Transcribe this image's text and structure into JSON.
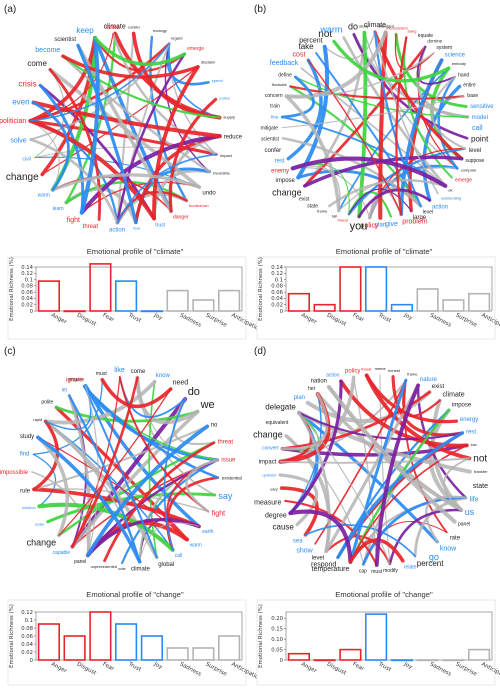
{
  "colors": {
    "red": "#e8242a",
    "blue": "#2a8bf2",
    "gray": "#b4b4b4",
    "purple": "#7b1fa2",
    "green": "#3ed43e",
    "dark": "#222222"
  },
  "panels": [
    {
      "label": "(a)",
      "words": [
        {
          "t": "climate",
          "c": "dark",
          "s": 7
        },
        {
          "t": "conifer",
          "c": "dark",
          "s": 4
        },
        {
          "t": "ecology",
          "c": "dark",
          "s": 4
        },
        {
          "t": "regard",
          "c": "dark",
          "s": 4
        },
        {
          "t": "emerge",
          "c": "red",
          "s": 5
        },
        {
          "t": "disclaim",
          "c": "dark",
          "s": 4
        },
        {
          "t": "spend",
          "c": "blue",
          "s": 4
        },
        {
          "t": "police",
          "c": "blue",
          "s": 4
        },
        {
          "t": "supply",
          "c": "dark",
          "s": 4
        },
        {
          "t": "reduce",
          "c": "dark",
          "s": 6
        },
        {
          "t": "impact",
          "c": "dark",
          "s": 4
        },
        {
          "t": "irreversible",
          "c": "dark",
          "s": 3.5
        },
        {
          "t": "undo",
          "c": "dark",
          "s": 6
        },
        {
          "t": "breakdown",
          "c": "red",
          "s": 4
        },
        {
          "t": "danger",
          "c": "red",
          "s": 5
        },
        {
          "t": "trust",
          "c": "blue",
          "s": 5
        },
        {
          "t": "real",
          "c": "blue",
          "s": 4
        },
        {
          "t": "action",
          "c": "blue",
          "s": 6
        },
        {
          "t": "threat",
          "c": "red",
          "s": 6
        },
        {
          "t": "fight",
          "c": "red",
          "s": 7
        },
        {
          "t": "learn",
          "c": "blue",
          "s": 5
        },
        {
          "t": "warm",
          "c": "blue",
          "s": 5
        },
        {
          "t": "change",
          "c": "dark",
          "s": 10
        },
        {
          "t": "civil",
          "c": "blue",
          "s": 5
        },
        {
          "t": "solve",
          "c": "blue",
          "s": 7
        },
        {
          "t": "politician",
          "c": "red",
          "s": 7
        },
        {
          "t": "even",
          "c": "blue",
          "s": 8
        },
        {
          "t": "crisis",
          "c": "red",
          "s": 8
        },
        {
          "t": "come",
          "c": "dark",
          "s": 8
        },
        {
          "t": "become",
          "c": "blue",
          "s": 7
        },
        {
          "t": "scientist",
          "c": "dark",
          "s": 6
        },
        {
          "t": "keep",
          "c": "blue",
          "s": 8
        },
        {
          "t": "strike",
          "c": "red",
          "s": 6
        }
      ],
      "profile": {
        "title": "Emotional profile of \"climate\"",
        "ylabel": "Emotional Richness (%)",
        "ylim": [
          0,
          0.14
        ],
        "yticks": [
          "0",
          "0.02",
          "0.04",
          "0.06",
          "0.08",
          "0.1",
          "0.12",
          "0.14"
        ],
        "categories": [
          "Anger",
          "Disgust",
          "Fear",
          "Trust",
          "Joy",
          "Sadness",
          "Surprise",
          "Anticipation"
        ],
        "values": [
          0.095,
          0,
          0.15,
          0.095,
          0,
          0.065,
          0.035,
          0.065
        ],
        "bar_colors": [
          "red",
          "red",
          "red",
          "blue",
          "blue",
          "gray",
          "gray",
          "gray"
        ]
      }
    },
    {
      "label": "(b)",
      "words": [
        {
          "t": "climate",
          "c": "dark",
          "s": 7
        },
        {
          "t": "standard",
          "c": "dark",
          "s": 4
        },
        {
          "t": "inconsistent",
          "c": "red",
          "s": 4
        },
        {
          "t": "bang",
          "c": "red",
          "s": 4
        },
        {
          "t": "equate",
          "c": "dark",
          "s": 5
        },
        {
          "t": "domine",
          "c": "dark",
          "s": 4.5
        },
        {
          "t": "system",
          "c": "dark",
          "s": 5
        },
        {
          "t": "science",
          "c": "blue",
          "s": 6
        },
        {
          "t": "embody",
          "c": "dark",
          "s": 4
        },
        {
          "t": "hand",
          "c": "dark",
          "s": 5
        },
        {
          "t": "entire",
          "c": "dark",
          "s": 5
        },
        {
          "t": "base",
          "c": "dark",
          "s": 5
        },
        {
          "t": "sensitive",
          "c": "blue",
          "s": 6
        },
        {
          "t": "model",
          "c": "blue",
          "s": 6
        },
        {
          "t": "call",
          "c": "blue",
          "s": 7
        },
        {
          "t": "point",
          "c": "dark",
          "s": 8
        },
        {
          "t": "level",
          "c": "dark",
          "s": 6
        },
        {
          "t": "suppose",
          "c": "dark",
          "s": 5
        },
        {
          "t": "compare",
          "c": "dark",
          "s": 4
        },
        {
          "t": "emerge",
          "c": "red",
          "s": 5
        },
        {
          "t": "ok",
          "c": "dark",
          "s": 4
        },
        {
          "t": "outstanding",
          "c": "blue",
          "s": 4
        },
        {
          "t": "action",
          "c": "blue",
          "s": 6
        },
        {
          "t": "level",
          "c": "dark",
          "s": 5
        },
        {
          "t": "large",
          "c": "dark",
          "s": 6
        },
        {
          "t": "problem",
          "c": "red",
          "s": 7
        },
        {
          "t": "give",
          "c": "blue",
          "s": 7
        },
        {
          "t": "plan",
          "c": "blue",
          "s": 6
        },
        {
          "t": "policy",
          "c": "red",
          "s": 7
        },
        {
          "t": "you",
          "c": "dark",
          "s": 11
        },
        {
          "t": "threat",
          "c": "red",
          "s": 4
        },
        {
          "t": "tall",
          "c": "dark",
          "s": 4
        },
        {
          "t": "frame",
          "c": "dark",
          "s": 4
        },
        {
          "t": "state",
          "c": "dark",
          "s": 5
        },
        {
          "t": "exist",
          "c": "dark",
          "s": 5
        },
        {
          "t": "change",
          "c": "dark",
          "s": 9
        },
        {
          "t": "impose",
          "c": "dark",
          "s": 6
        },
        {
          "t": "enemy",
          "c": "red",
          "s": 6
        },
        {
          "t": "rest",
          "c": "blue",
          "s": 6
        },
        {
          "t": "confer",
          "c": "dark",
          "s": 6
        },
        {
          "t": "scientist",
          "c": "dark",
          "s": 5
        },
        {
          "t": "mitigate",
          "c": "dark",
          "s": 5
        },
        {
          "t": "fine",
          "c": "blue",
          "s": 4.5
        },
        {
          "t": "train",
          "c": "dark",
          "s": 5
        },
        {
          "t": "concern",
          "c": "dark",
          "s": 5
        },
        {
          "t": "fluctuate",
          "c": "dark",
          "s": 4
        },
        {
          "t": "define",
          "c": "dark",
          "s": 5
        },
        {
          "t": "feedback",
          "c": "blue",
          "s": 7
        },
        {
          "t": "cost",
          "c": "red",
          "s": 7
        },
        {
          "t": "take",
          "c": "dark",
          "s": 8
        },
        {
          "t": "percent",
          "c": "dark",
          "s": 7
        },
        {
          "t": "not",
          "c": "dark",
          "s": 10
        },
        {
          "t": "warm",
          "c": "blue",
          "s": 9
        },
        {
          "t": "do",
          "c": "dark",
          "s": 9
        },
        {
          "t": "study",
          "c": "dark",
          "s": 4
        }
      ],
      "profile": {
        "title": "Emotional profile of \"climate\"",
        "ylabel": "Emotional Richness (%)",
        "ylim": [
          0,
          0.14
        ],
        "yticks": [
          "0",
          "0.02",
          "0.04",
          "0.06",
          "0.08",
          "0.1",
          "0.12",
          "0.14"
        ],
        "categories": [
          "Anger",
          "Disgust",
          "Fear",
          "Trust",
          "Joy",
          "Sadness",
          "Surprise",
          "Anticipation"
        ],
        "values": [
          0.055,
          0.02,
          0.14,
          0.14,
          0.02,
          0.07,
          0.035,
          0.055
        ],
        "bar_colors": [
          "red",
          "red",
          "red",
          "blue",
          "blue",
          "gray",
          "gray",
          "gray"
        ]
      }
    },
    {
      "label": "(c)",
      "words": [
        {
          "t": "require",
          "c": "dark",
          "s": 5
        },
        {
          "t": "must",
          "c": "dark",
          "s": 5
        },
        {
          "t": "like",
          "c": "blue",
          "s": 7
        },
        {
          "t": "come",
          "c": "dark",
          "s": 6
        },
        {
          "t": "know",
          "c": "blue",
          "s": 6
        },
        {
          "t": "need",
          "c": "dark",
          "s": 7
        },
        {
          "t": "do",
          "c": "dark",
          "s": 11
        },
        {
          "t": "we",
          "c": "dark",
          "s": 11
        },
        {
          "t": "no",
          "c": "dark",
          "s": 6
        },
        {
          "t": "threat",
          "c": "red",
          "s": 6
        },
        {
          "t": "issue",
          "c": "red",
          "s": 6
        },
        {
          "t": "existential",
          "c": "dark",
          "s": 4.5
        },
        {
          "t": "say",
          "c": "blue",
          "s": 9
        },
        {
          "t": "fight",
          "c": "red",
          "s": 7
        },
        {
          "t": "earth",
          "c": "blue",
          "s": 5
        },
        {
          "t": "warm",
          "c": "blue",
          "s": 5
        },
        {
          "t": "call",
          "c": "blue",
          "s": 5
        },
        {
          "t": "global",
          "c": "dark",
          "s": 6
        },
        {
          "t": "climate",
          "c": "dark",
          "s": 6
        },
        {
          "t": "vote",
          "c": "dark",
          "s": 4
        },
        {
          "t": "unprecedented",
          "c": "dark",
          "s": 4
        },
        {
          "t": "panel",
          "c": "dark",
          "s": 5
        },
        {
          "t": "capable",
          "c": "blue",
          "s": 5
        },
        {
          "t": "change",
          "c": "dark",
          "s": 9
        },
        {
          "t": "scale",
          "c": "blue",
          "s": 4
        },
        {
          "t": "solution",
          "c": "blue",
          "s": 4
        },
        {
          "t": "rule",
          "c": "dark",
          "s": 6
        },
        {
          "t": "impossible",
          "c": "red",
          "s": 6
        },
        {
          "t": "find",
          "c": "blue",
          "s": 6
        },
        {
          "t": "study",
          "c": "dark",
          "s": 6
        },
        {
          "t": "rapid",
          "c": "dark",
          "s": 4
        },
        {
          "t": "polite",
          "c": "dark",
          "s": 5
        },
        {
          "t": "let",
          "c": "blue",
          "s": 5
        },
        {
          "t": "ignore",
          "c": "red",
          "s": 6
        }
      ],
      "profile": {
        "title": "Emotional profile of \"change\"",
        "ylabel": "Emotional Richness (%)",
        "ylim": [
          0,
          0.12
        ],
        "yticks": [
          "0",
          "0.02",
          "0.04",
          "0.06",
          "0.08",
          "0.1",
          "0.12"
        ],
        "categories": [
          "Anger",
          "Disgust",
          "Fear",
          "Trust",
          "Joy",
          "Sadness",
          "Surprise",
          "Anticipation"
        ],
        "values": [
          0.09,
          0.06,
          0.12,
          0.09,
          0.06,
          0.03,
          0.03,
          0.06
        ],
        "bar_colors": [
          "red",
          "red",
          "red",
          "blue",
          "blue",
          "gray",
          "gray",
          "gray"
        ]
      }
    },
    {
      "label": "(d)",
      "words": [
        {
          "t": "threat",
          "c": "red",
          "s": 4
        },
        {
          "t": "meme",
          "c": "dark",
          "s": 4
        },
        {
          "t": "honest",
          "c": "dark",
          "s": 4
        },
        {
          "t": "frame",
          "c": "dark",
          "s": 4
        },
        {
          "t": "nature",
          "c": "blue",
          "s": 6
        },
        {
          "t": "exist",
          "c": "dark",
          "s": 6
        },
        {
          "t": "climate",
          "c": "dark",
          "s": 7
        },
        {
          "t": "impose",
          "c": "dark",
          "s": 6
        },
        {
          "t": "energy",
          "c": "blue",
          "s": 6
        },
        {
          "t": "rest",
          "c": "blue",
          "s": 6
        },
        {
          "t": "low",
          "c": "dark",
          "s": 4
        },
        {
          "t": "not",
          "c": "dark",
          "s": 10
        },
        {
          "t": "transfer",
          "c": "dark",
          "s": 4
        },
        {
          "t": "state",
          "c": "dark",
          "s": 7
        },
        {
          "t": "life",
          "c": "blue",
          "s": 7
        },
        {
          "t": "us",
          "c": "blue",
          "s": 9
        },
        {
          "t": "panel",
          "c": "dark",
          "s": 5
        },
        {
          "t": "rate",
          "c": "dark",
          "s": 6
        },
        {
          "t": "know",
          "c": "blue",
          "s": 7
        },
        {
          "t": "go",
          "c": "blue",
          "s": 9
        },
        {
          "t": "percent",
          "c": "dark",
          "s": 8
        },
        {
          "t": "relate",
          "c": "blue",
          "s": 5
        },
        {
          "t": "modify",
          "c": "dark",
          "s": 5
        },
        {
          "t": "must",
          "c": "dark",
          "s": 5
        },
        {
          "t": "cap",
          "c": "dark",
          "s": 5
        },
        {
          "t": "temperature",
          "c": "dark",
          "s": 7
        },
        {
          "t": "respond",
          "c": "dark",
          "s": 7
        },
        {
          "t": "level",
          "c": "dark",
          "s": 6
        },
        {
          "t": "show",
          "c": "blue",
          "s": 7
        },
        {
          "t": "sea",
          "c": "blue",
          "s": 6
        },
        {
          "t": "cause",
          "c": "dark",
          "s": 8
        },
        {
          "t": "degree",
          "c": "dark",
          "s": 7
        },
        {
          "t": "measure",
          "c": "dark",
          "s": 7
        },
        {
          "t": "vary",
          "c": "dark",
          "s": 4
        },
        {
          "t": "optimist",
          "c": "blue",
          "s": 4
        },
        {
          "t": "impact",
          "c": "dark",
          "s": 6
        },
        {
          "t": "convert",
          "c": "blue",
          "s": 5
        },
        {
          "t": "change",
          "c": "dark",
          "s": 9
        },
        {
          "t": "equivalent",
          "c": "dark",
          "s": 5
        },
        {
          "t": "delegate",
          "c": "dark",
          "s": 8
        },
        {
          "t": "plan",
          "c": "blue",
          "s": 6
        },
        {
          "t": "her",
          "c": "dark",
          "s": 5
        },
        {
          "t": "nation",
          "c": "dark",
          "s": 6
        },
        {
          "t": "action",
          "c": "blue",
          "s": 5
        },
        {
          "t": "policy",
          "c": "red",
          "s": 6
        }
      ],
      "profile": {
        "title": "Emotional profile of \"change\"",
        "ylabel": "Emotional Richness (%)",
        "ylim": [
          0,
          0.23
        ],
        "yticks": [
          "0",
          "0.05",
          "0.10",
          "0.15",
          "0.20"
        ],
        "categories": [
          "Anger",
          "Disgust",
          "Fear",
          "Trust",
          "Joy",
          "Sadness",
          "Surprise",
          "Anticipation"
        ],
        "values": [
          0.03,
          0,
          0.05,
          0.22,
          0,
          0,
          0,
          0.05
        ],
        "bar_colors": [
          "red",
          "red",
          "red",
          "blue",
          "blue",
          "gray",
          "gray",
          "gray"
        ]
      }
    }
  ]
}
